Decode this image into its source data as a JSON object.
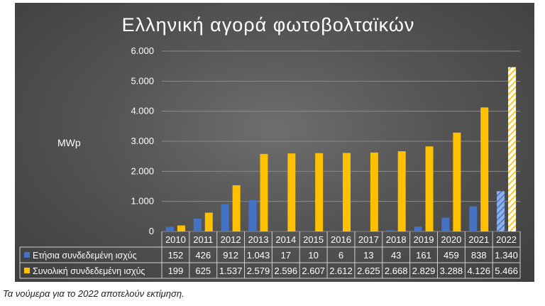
{
  "chart_data": {
    "type": "bar",
    "title": "Ελληνική αγορά φωτοβολταϊκών",
    "ylabel": "MWp",
    "ylim": [
      0,
      6000
    ],
    "yticks": [
      "0",
      "1.000",
      "2.000",
      "3.000",
      "4.000",
      "5.000",
      "6.000"
    ],
    "categories": [
      "2010",
      "2011",
      "2012",
      "2013",
      "2014",
      "2015",
      "2016",
      "2017",
      "2018",
      "2019",
      "2020",
      "2021",
      "2022"
    ],
    "series": [
      {
        "name": "Ετήσια συνδεδεμένη ισχύς",
        "color": "#4472c4",
        "values": [
          152,
          426,
          912,
          1043,
          17,
          10,
          6,
          13,
          43,
          161,
          459,
          838,
          1340
        ],
        "labels": [
          "152",
          "426",
          "912",
          "1.043",
          "17",
          "10",
          "6",
          "13",
          "43",
          "161",
          "459",
          "838",
          "1.340"
        ]
      },
      {
        "name": "Συνολική συνδεδεμένη ισχύς",
        "color": "#ffc000",
        "values": [
          199,
          625,
          1537,
          2579,
          2596,
          2607,
          2612,
          2625,
          2668,
          2829,
          3288,
          4126,
          5466
        ],
        "labels": [
          "199",
          "625",
          "1.537",
          "2.579",
          "2.596",
          "2.607",
          "2.612",
          "2.625",
          "2.668",
          "2.829",
          "3.288",
          "4.126",
          "5.466"
        ]
      }
    ],
    "estimated_category": "2022",
    "grid": true,
    "legend": "data-table"
  },
  "footnote": "Τα νούμερα για το 2022 αποτελούν εκτίμηση."
}
